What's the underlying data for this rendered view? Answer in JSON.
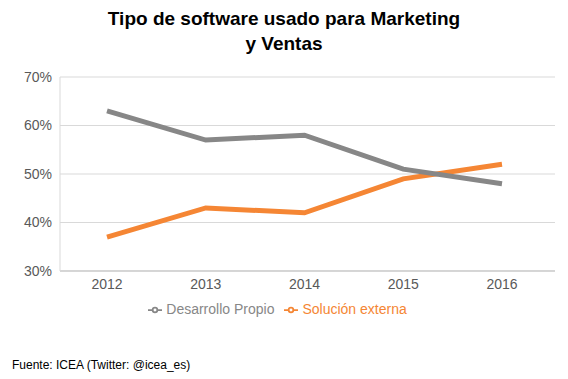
{
  "chart_data": {
    "type": "line",
    "title": "Tipo de software usado para Marketing y Ventas",
    "categories": [
      "2012",
      "2013",
      "2014",
      "2015",
      "2016"
    ],
    "series": [
      {
        "name": "Solución externa",
        "color": "#f58634",
        "values": [
          37,
          43,
          42,
          49,
          52
        ]
      },
      {
        "name": "Desarrollo Propio",
        "color": "#878787",
        "values": [
          63,
          57,
          58,
          51,
          48
        ]
      }
    ],
    "ylim": [
      30,
      70
    ],
    "yticks": [
      {
        "value": 30,
        "label": "30%"
      },
      {
        "value": 40,
        "label": "40%"
      },
      {
        "value": 50,
        "label": "50%"
      },
      {
        "value": 60,
        "label": "60%"
      },
      {
        "value": 70,
        "label": "70%"
      }
    ],
    "grid": true,
    "legend": "bottom",
    "annotations": [
      "Fuente: ICEA (Twitter: @icea_es)"
    ]
  }
}
